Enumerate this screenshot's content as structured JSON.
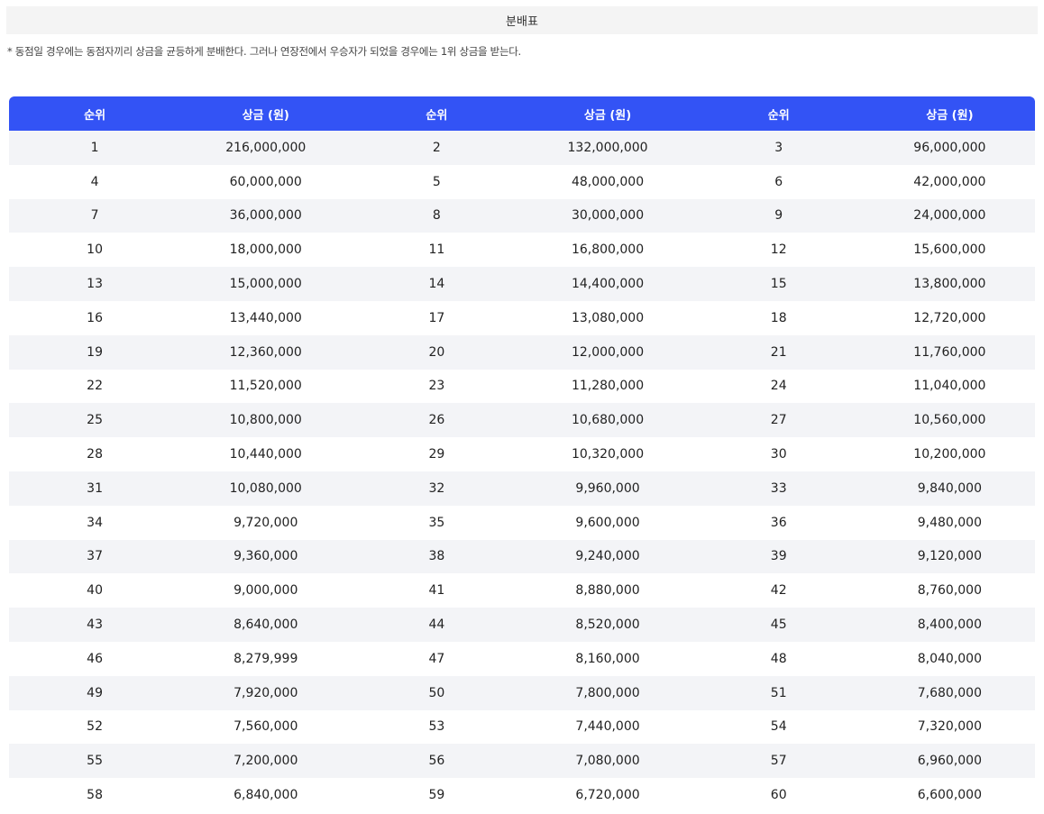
{
  "title": "분배표",
  "note": "* 동점일 경우에는 동점자끼리 상금을 균등하게 분배한다. 그러나 연장전에서 우승자가 되었을 경우에는 1위 상금을 받는다.",
  "headers": [
    "순위",
    "상금 (원)",
    "순위",
    "상금 (원)",
    "순위",
    "상금 (원)"
  ],
  "rows": [
    [
      "1",
      "216,000,000",
      "2",
      "132,000,000",
      "3",
      "96,000,000"
    ],
    [
      "4",
      "60,000,000",
      "5",
      "48,000,000",
      "6",
      "42,000,000"
    ],
    [
      "7",
      "36,000,000",
      "8",
      "30,000,000",
      "9",
      "24,000,000"
    ],
    [
      "10",
      "18,000,000",
      "11",
      "16,800,000",
      "12",
      "15,600,000"
    ],
    [
      "13",
      "15,000,000",
      "14",
      "14,400,000",
      "15",
      "13,800,000"
    ],
    [
      "16",
      "13,440,000",
      "17",
      "13,080,000",
      "18",
      "12,720,000"
    ],
    [
      "19",
      "12,360,000",
      "20",
      "12,000,000",
      "21",
      "11,760,000"
    ],
    [
      "22",
      "11,520,000",
      "23",
      "11,280,000",
      "24",
      "11,040,000"
    ],
    [
      "25",
      "10,800,000",
      "26",
      "10,680,000",
      "27",
      "10,560,000"
    ],
    [
      "28",
      "10,440,000",
      "29",
      "10,320,000",
      "30",
      "10,200,000"
    ],
    [
      "31",
      "10,080,000",
      "32",
      "9,960,000",
      "33",
      "9,840,000"
    ],
    [
      "34",
      "9,720,000",
      "35",
      "9,600,000",
      "36",
      "9,480,000"
    ],
    [
      "37",
      "9,360,000",
      "38",
      "9,240,000",
      "39",
      "9,120,000"
    ],
    [
      "40",
      "9,000,000",
      "41",
      "8,880,000",
      "42",
      "8,760,000"
    ],
    [
      "43",
      "8,640,000",
      "44",
      "8,520,000",
      "45",
      "8,400,000"
    ],
    [
      "46",
      "8,279,999",
      "47",
      "8,160,000",
      "48",
      "8,040,000"
    ],
    [
      "49",
      "7,920,000",
      "50",
      "7,800,000",
      "51",
      "7,680,000"
    ],
    [
      "52",
      "7,560,000",
      "53",
      "7,440,000",
      "54",
      "7,320,000"
    ],
    [
      "55",
      "7,200,000",
      "56",
      "7,080,000",
      "57",
      "6,960,000"
    ],
    [
      "58",
      "6,840,000",
      "59",
      "6,720,000",
      "60",
      "6,600,000"
    ]
  ],
  "colors": {
    "header_bg": "#3353f5",
    "header_text": "#ffffff",
    "stripe_bg": "#f3f4f7",
    "title_bg": "#f4f4f4"
  }
}
